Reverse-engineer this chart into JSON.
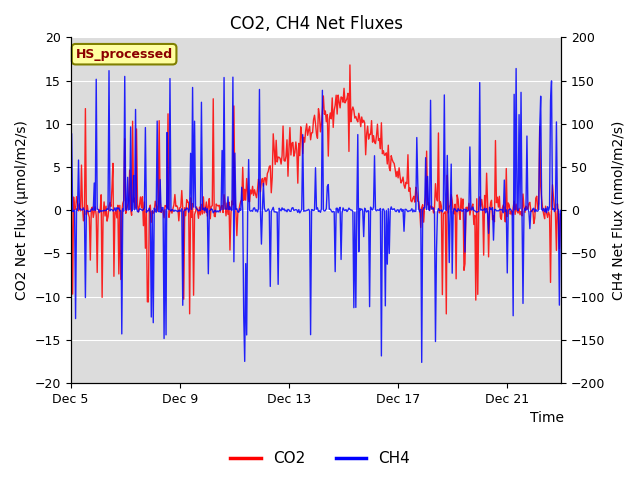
{
  "title": "CO2, CH4 Net Fluxes",
  "xlabel": "Time",
  "ylabel_left": "CO2 Net Flux (μmol/m2/s)",
  "ylabel_right": "CH4 Net Flux (nmol/m2/s)",
  "ylim_left": [
    -20,
    20
  ],
  "ylim_right": [
    -200,
    200
  ],
  "xlim_end": 18,
  "xtick_positions": [
    0,
    4,
    8,
    12,
    16
  ],
  "xtick_labels": [
    "Dec 5",
    "Dec 9",
    "Dec 13",
    "Dec 17",
    "Dec 21"
  ],
  "co2_color": "#FF0000",
  "ch4_color": "#0000FF",
  "bg_color": "#DCDCDC",
  "fig_bg_color": "#FFFFFF",
  "legend_label": "HS_processed",
  "legend_box_color": "#FFFFA0",
  "legend_text_color": "#8B0000",
  "legend_border_color": "#808000",
  "title_fontsize": 12,
  "axis_label_fontsize": 10,
  "tick_fontsize": 9,
  "seed": 42,
  "n_points": 500,
  "duration_days": 18,
  "co2_linewidth": 1.0,
  "ch4_linewidth": 1.0
}
